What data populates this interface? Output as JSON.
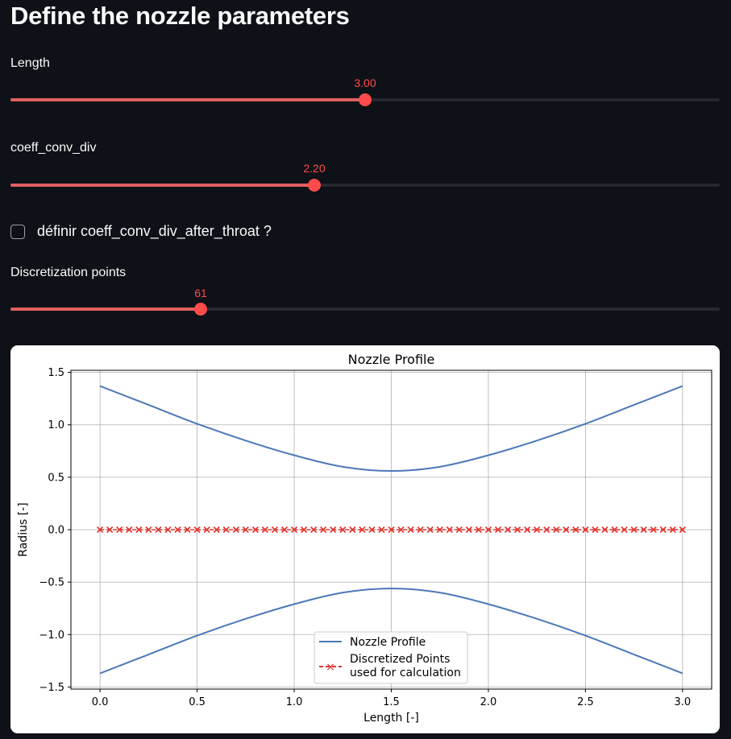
{
  "header": {
    "title": "Define the nozzle parameters"
  },
  "sliders": [
    {
      "id": "length",
      "label": "Length",
      "value_text": "3.00",
      "fraction": 0.5
    },
    {
      "id": "coeff_conv_div",
      "label": "coeff_conv_div",
      "value_text": "2.20",
      "fraction": 0.428
    },
    {
      "id": "discretization_points",
      "label": "Discretization points",
      "value_text": "61",
      "fraction": 0.268
    }
  ],
  "checkbox": {
    "label": "définir coeff_conv_div_after_throat ?",
    "checked": false
  },
  "colors": {
    "accent": "#ff4b4b",
    "background": "#0e1117",
    "profile_line": "#4c78b8",
    "points": "#e3342f"
  },
  "chart_data": {
    "type": "line",
    "title": "Nozzle Profile",
    "xlabel": "Length [-]",
    "ylabel": "Radius [-]",
    "xlim": [
      -0.15,
      3.15
    ],
    "ylim": [
      -1.52,
      1.52
    ],
    "xticks": [
      0.0,
      0.5,
      1.0,
      1.5,
      2.0,
      2.5,
      3.0
    ],
    "xtick_labels": [
      "0.0",
      "0.5",
      "1.0",
      "1.5",
      "2.0",
      "2.5",
      "3.0"
    ],
    "yticks": [
      -1.5,
      -1.0,
      -0.5,
      0.0,
      0.5,
      1.0,
      1.5
    ],
    "ytick_labels": [
      "−1.5",
      "−1.0",
      "−0.5",
      "0.0",
      "0.5",
      "1.0",
      "1.5"
    ],
    "grid": true,
    "legend_position": "lower center",
    "series": [
      {
        "name": "Nozzle Profile",
        "style": "line",
        "x": [
          0.0,
          0.25,
          0.5,
          0.75,
          1.0,
          1.25,
          1.5,
          1.75,
          2.0,
          2.25,
          2.5,
          2.75,
          3.0
        ],
        "upper": [
          1.37,
          1.19,
          1.01,
          0.85,
          0.71,
          0.6,
          0.56,
          0.6,
          0.71,
          0.85,
          1.01,
          1.19,
          1.37
        ],
        "lower": [
          -1.37,
          -1.19,
          -1.01,
          -0.85,
          -0.71,
          -0.6,
          -0.56,
          -0.6,
          -0.71,
          -0.85,
          -1.01,
          -1.19,
          -1.37
        ]
      },
      {
        "name": "Discretized Points\nused for calculation",
        "legend_line1": "Discretized Points",
        "legend_line2": "used for calculation",
        "style": "dashed-x",
        "x_start": 0.0,
        "x_end": 3.0,
        "count": 61,
        "y": 0.0
      }
    ]
  }
}
